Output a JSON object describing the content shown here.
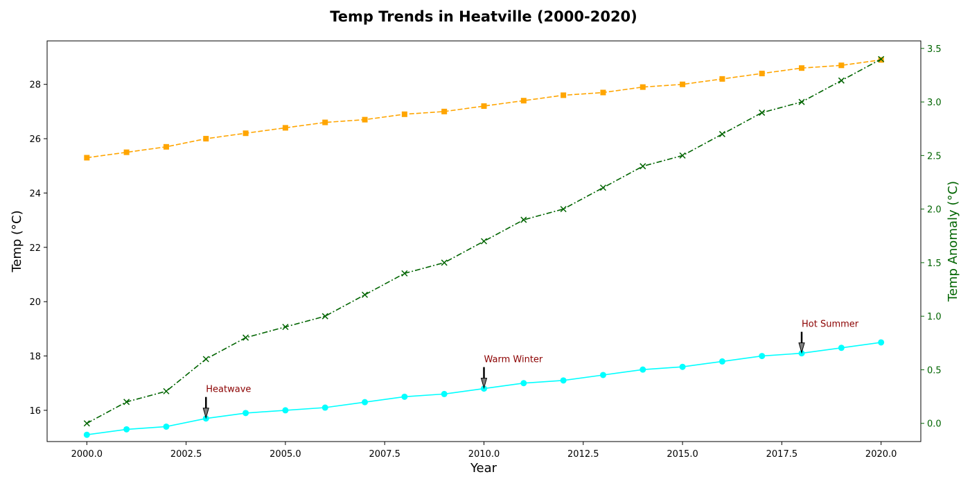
{
  "chart_data": {
    "type": "line",
    "title": "Temp Trends in Heatville (2000-2020)",
    "xlabel": "Year",
    "ylabel_left": "Temp (°C)",
    "ylabel_right": "Temp Anomaly (°C)",
    "xlim": [
      1999.0,
      2021.0
    ],
    "ylim_left": [
      14.85,
      29.6
    ],
    "ylim_right": [
      -0.17,
      3.57
    ],
    "x_ticks": [
      2000.0,
      2002.5,
      2005.0,
      2007.5,
      2010.0,
      2012.5,
      2015.0,
      2017.5,
      2020.0
    ],
    "x_tick_labels": [
      "2000.0",
      "2002.5",
      "2005.0",
      "2007.5",
      "2010.0",
      "2012.5",
      "2015.0",
      "2017.5",
      "2020.0"
    ],
    "y_left_ticks": [
      16,
      18,
      20,
      22,
      24,
      26,
      28
    ],
    "y_left_tick_labels": [
      "16",
      "18",
      "20",
      "22",
      "24",
      "26",
      "28"
    ],
    "y_right_ticks": [
      0.0,
      0.5,
      1.0,
      1.5,
      2.0,
      2.5,
      3.0,
      3.5
    ],
    "y_right_tick_labels": [
      "0.0",
      "0.5",
      "1.0",
      "1.5",
      "2.0",
      "2.5",
      "3.0",
      "3.5"
    ],
    "grid": false,
    "legend": false,
    "x": [
      2000,
      2001,
      2002,
      2003,
      2004,
      2005,
      2006,
      2007,
      2008,
      2009,
      2010,
      2011,
      2012,
      2013,
      2014,
      2015,
      2016,
      2017,
      2018,
      2019,
      2020
    ],
    "series": [
      {
        "axis": "left",
        "color": "#00ffff",
        "marker": "circle",
        "linestyle": "solid",
        "values": [
          15.1,
          15.3,
          15.4,
          15.7,
          15.9,
          16.0,
          16.1,
          16.3,
          16.5,
          16.6,
          16.8,
          17.0,
          17.1,
          17.3,
          17.5,
          17.6,
          17.8,
          18.0,
          18.1,
          18.3,
          18.5
        ]
      },
      {
        "axis": "left",
        "color": "#ffa500",
        "marker": "square",
        "linestyle": "dashed",
        "values": [
          25.3,
          25.5,
          25.7,
          26.0,
          26.2,
          26.4,
          26.6,
          26.7,
          26.9,
          27.0,
          27.2,
          27.4,
          27.6,
          27.7,
          27.9,
          28.0,
          28.2,
          28.4,
          28.6,
          28.7,
          28.9
        ]
      },
      {
        "axis": "right",
        "color": "#006400",
        "marker": "x",
        "linestyle": "dashdot",
        "values": [
          0.0,
          0.2,
          0.3,
          0.6,
          0.8,
          0.9,
          1.0,
          1.2,
          1.4,
          1.5,
          1.7,
          1.9,
          2.0,
          2.2,
          2.4,
          2.5,
          2.7,
          2.9,
          3.0,
          3.2,
          3.4
        ]
      }
    ],
    "annotations": [
      {
        "text": "Heatwave",
        "x": 2003,
        "y": 15.7,
        "color": "#8b0000"
      },
      {
        "text": "Warm Winter",
        "x": 2010,
        "y": 16.8,
        "color": "#8b0000"
      },
      {
        "text": "Hot Summer",
        "x": 2018,
        "y": 18.1,
        "color": "#8b0000"
      }
    ],
    "colors": {
      "right_axis": "#006400",
      "annotation": "#8b0000",
      "axes": "#000000"
    }
  }
}
